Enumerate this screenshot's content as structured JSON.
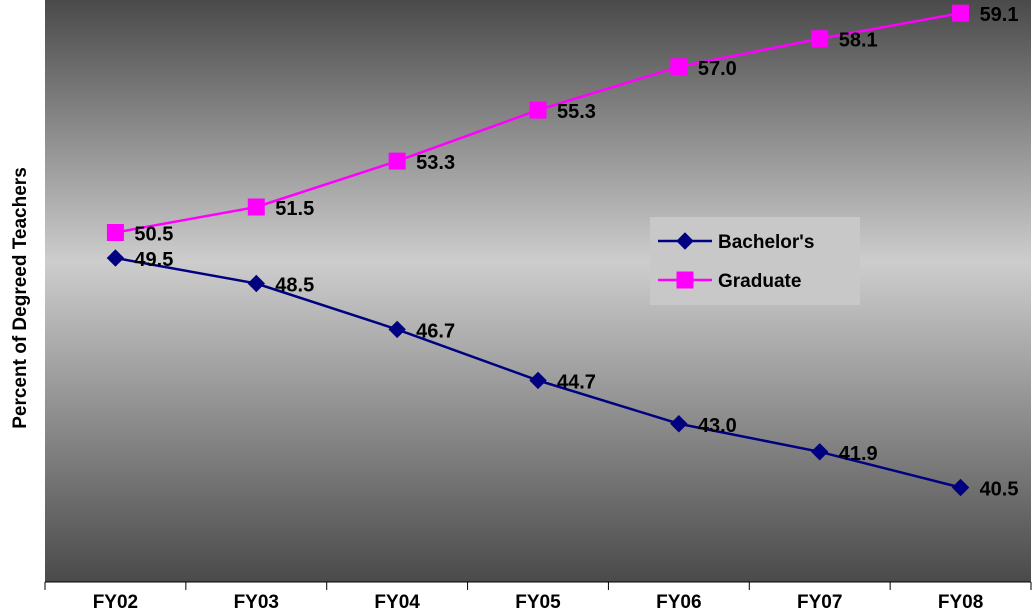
{
  "chart_data": {
    "type": "line",
    "categories": [
      "FY02",
      "FY03",
      "FY04",
      "FY05",
      "FY06",
      "FY07",
      "FY08"
    ],
    "series": [
      {
        "name": "Bachelor's",
        "values": [
          49.5,
          48.5,
          46.7,
          44.7,
          43.0,
          41.9,
          40.5
        ],
        "color": "#000080",
        "marker": "diamond"
      },
      {
        "name": "Graduate",
        "values": [
          50.5,
          51.5,
          53.3,
          55.3,
          57.0,
          58.1,
          59.1
        ],
        "color": "#FF00FF",
        "marker": "square"
      }
    ],
    "data_labels": {
      "Bachelor's": [
        "49.5",
        "48.5",
        "46.7",
        "44.7",
        "43.0",
        "41.9",
        "40.5"
      ],
      "Graduate": [
        "50.5",
        "51.5",
        "53.3",
        "55.3",
        "57.0",
        "58.1",
        "59.1"
      ]
    },
    "ylabel": "Percent of Degreed Teachers",
    "xlabel": "",
    "title": "",
    "ylim": [
      36,
      60
    ],
    "grid": false,
    "legend_position": "right"
  }
}
